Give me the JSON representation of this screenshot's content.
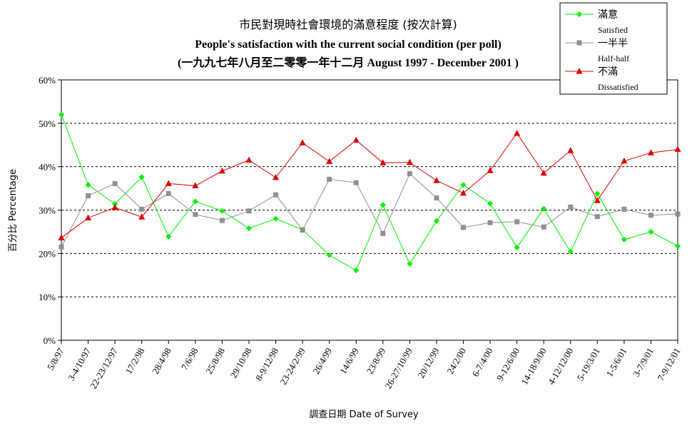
{
  "chart_data": {
    "type": "line",
    "title": [
      "市民對現時社會環境的滿意程度 (按次計算)",
      "People's satisfaction with the current social condition (per poll)",
      "(一九九七年八月至二零零一年十二月 August 1997 -  December 2001 )"
    ],
    "xlabel": "調查日期 Date of Survey",
    "ylabel": "百分比 Percentage",
    "ylim": [
      0,
      60
    ],
    "yticks": [
      "0%",
      "10%",
      "20%",
      "30%",
      "40%",
      "50%",
      "60%"
    ],
    "grid": "horizontal dashed",
    "legend_position": "top-right",
    "categories": [
      "5/8/97",
      "3-4/10/97",
      "22-23/12/97",
      "17/2/98",
      "28/4/98",
      "7/6/98",
      "25/8/98",
      "29/10/98",
      "8-9/12/98",
      "23-24/2/99",
      "26/4/99",
      "14/6/99",
      "23/8/99",
      "26-27/10/99",
      "20/12/99",
      "24/2/00",
      "6-7/4/00",
      "9-12/6/00",
      "14-18/9/00",
      "4-12/12/00",
      "5-19/3/01",
      "1-5/6/01",
      "3-7/9/01",
      "7-9/12/01"
    ],
    "series": [
      {
        "name": "滿意",
        "name_en": "Satisfied",
        "color": "#00ee00",
        "marker": "diamond",
        "values": [
          52.0,
          35.8,
          31.4,
          37.6,
          23.9,
          32.0,
          29.8,
          25.8,
          28.0,
          25.5,
          19.6,
          16.1,
          31.2,
          17.6,
          27.5,
          35.8,
          31.5,
          21.4,
          30.3,
          20.4,
          33.8,
          23.2,
          25.0,
          21.7
        ]
      },
      {
        "name": "一半半",
        "name_en": "Half-half",
        "color": "#909090",
        "marker": "square",
        "values": [
          21.5,
          33.3,
          36.1,
          30.2,
          33.8,
          29.0,
          27.6,
          29.8,
          33.5,
          25.4,
          37.1,
          36.3,
          24.6,
          38.4,
          32.8,
          26.0,
          27.1,
          27.3,
          26.1,
          30.7,
          28.5,
          30.2,
          28.8,
          29.1
        ]
      },
      {
        "name": "不滿",
        "name_en": "Dissatisfied",
        "color": "#dd0000",
        "marker": "triangle",
        "values": [
          23.6,
          28.2,
          30.6,
          28.4,
          36.1,
          35.6,
          39.0,
          41.5,
          37.5,
          45.5,
          41.2,
          46.1,
          40.9,
          41.0,
          36.8,
          33.9,
          39.1,
          47.7,
          38.5,
          43.7,
          32.2,
          41.3,
          43.2,
          44.0
        ]
      }
    ]
  }
}
